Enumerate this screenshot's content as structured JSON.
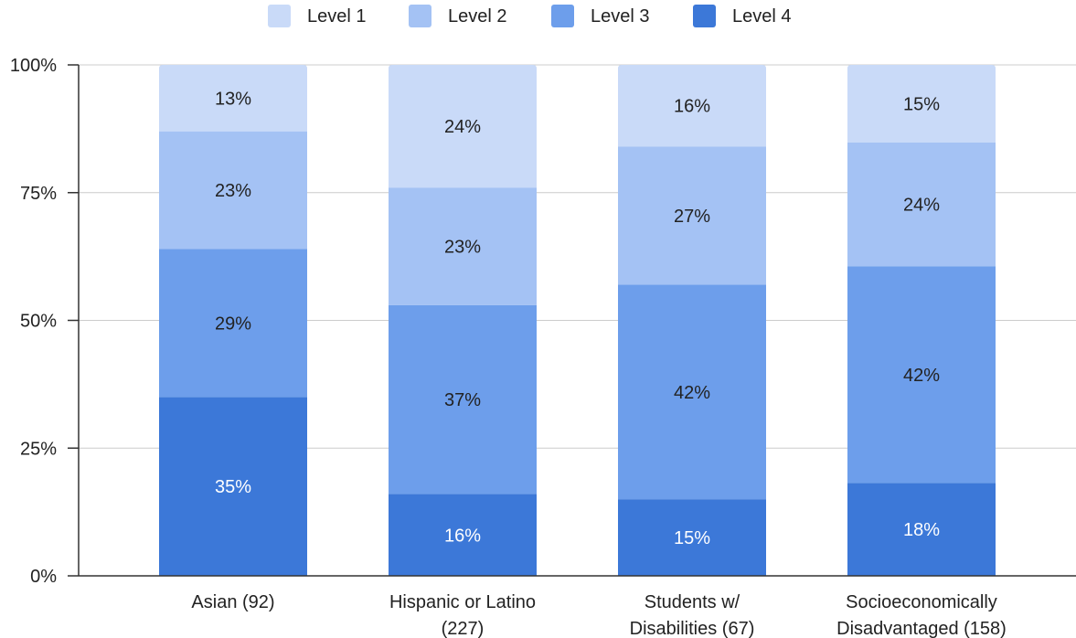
{
  "chart_data": {
    "type": "bar",
    "stacked": true,
    "normalized": true,
    "categories": [
      "Asian (92)",
      "Hispanic or Latino (227)",
      "Students w/ Disabilities (67)",
      "Socioeconomically Disadvantaged (158)"
    ],
    "category_label_lines": [
      [
        "Asian (92)"
      ],
      [
        "Hispanic or Latino",
        "(227)"
      ],
      [
        "Students w/",
        "Disabilities (67)"
      ],
      [
        "Socioeconomically",
        "Disadvantaged (158)"
      ]
    ],
    "series": [
      {
        "name": "Level 4",
        "values": [
          35,
          16,
          15,
          18
        ],
        "labels": [
          "35%",
          "16%",
          "15%",
          "18%"
        ],
        "color": "#3c78d8",
        "label_color": "#ffffff"
      },
      {
        "name": "Level 3",
        "values": [
          29,
          37,
          42,
          42
        ],
        "labels": [
          "29%",
          "37%",
          "42%",
          "42%"
        ],
        "color": "#6d9eeb",
        "label_color": "#222222"
      },
      {
        "name": "Level 2",
        "values": [
          23,
          23,
          27,
          24
        ],
        "labels": [
          "23%",
          "23%",
          "27%",
          "24%"
        ],
        "color": "#a4c2f4",
        "label_color": "#222222"
      },
      {
        "name": "Level 1",
        "values": [
          13,
          24,
          16,
          15
        ],
        "labels": [
          "13%",
          "24%",
          "16%",
          "15%"
        ],
        "color": "#c9daf8",
        "label_color": "#222222"
      }
    ],
    "legend": {
      "position": "top",
      "order": [
        "Level 1",
        "Level 2",
        "Level 3",
        "Level 4"
      ]
    },
    "y_axis": {
      "ylim": [
        0,
        100
      ],
      "ticks": [
        0,
        25,
        50,
        75,
        100
      ],
      "tick_labels": [
        "0%",
        "25%",
        "50%",
        "75%",
        "100%"
      ]
    },
    "grid": true
  }
}
